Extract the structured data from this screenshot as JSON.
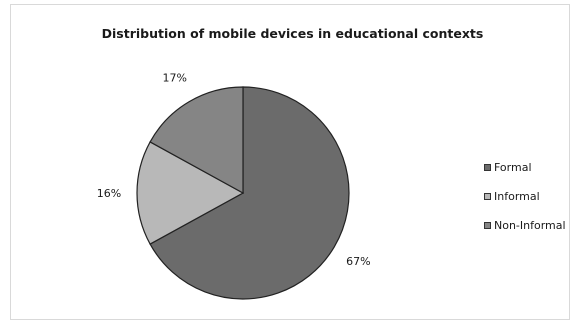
{
  "chart_data": {
    "type": "pie",
    "title": "Distribution of mobile devices in educational contexts",
    "categories": [
      "Formal",
      "Informal",
      "Non-Informal"
    ],
    "values": [
      67,
      16,
      17
    ],
    "value_labels": [
      "67%",
      "16%",
      "17%"
    ],
    "colors": [
      "#6b6b6b",
      "#b8b8b8",
      "#858585"
    ],
    "legend_position": "right"
  },
  "legend": {
    "items": [
      {
        "label": "Formal",
        "color": "#6b6b6b"
      },
      {
        "label": "Informal",
        "color": "#b8b8b8"
      },
      {
        "label": "Non-Informal",
        "color": "#858585"
      }
    ]
  }
}
